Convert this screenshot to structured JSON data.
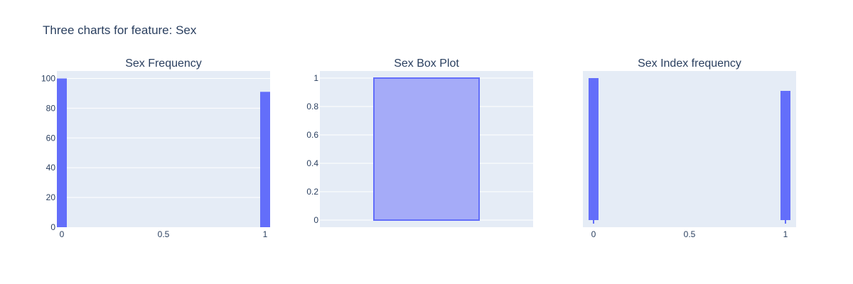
{
  "figure": {
    "title": "Three charts for feature: Sex",
    "colors": {
      "plot_bg": "#e5ecf6",
      "grid": "#ffffff",
      "bar": "#636efa",
      "box_fill": "#a5abf8",
      "box_line": "#636efa",
      "text": "#2a3f5f"
    }
  },
  "chart_data": [
    {
      "type": "bar",
      "title": "Sex Frequency",
      "categories": [
        0,
        1
      ],
      "values": [
        100,
        91
      ],
      "xlim": [
        0,
        1
      ],
      "ylim": [
        0,
        105
      ],
      "xticks": [
        "0",
        "0.5",
        "1"
      ],
      "yticks": [
        "0",
        "20",
        "40",
        "60",
        "80",
        "100"
      ],
      "grid": true
    },
    {
      "type": "box",
      "title": "Sex Box Plot",
      "q1": 0,
      "median": 0,
      "q3": 1,
      "lowerfence": 0,
      "upperfence": 1,
      "ylim": [
        -0.05,
        1.05
      ],
      "yticks": [
        "0",
        "0.2",
        "0.4",
        "0.6",
        "0.8",
        "1"
      ],
      "grid": true
    },
    {
      "type": "bar",
      "title": "Sex Index frequency",
      "categories": [
        0,
        1
      ],
      "values": [
        100,
        91
      ],
      "xlim": [
        0,
        1
      ],
      "ylim": [
        -5,
        105
      ],
      "xticks": [
        "0",
        "0.5",
        "1"
      ],
      "yticks": [],
      "grid": false
    }
  ]
}
